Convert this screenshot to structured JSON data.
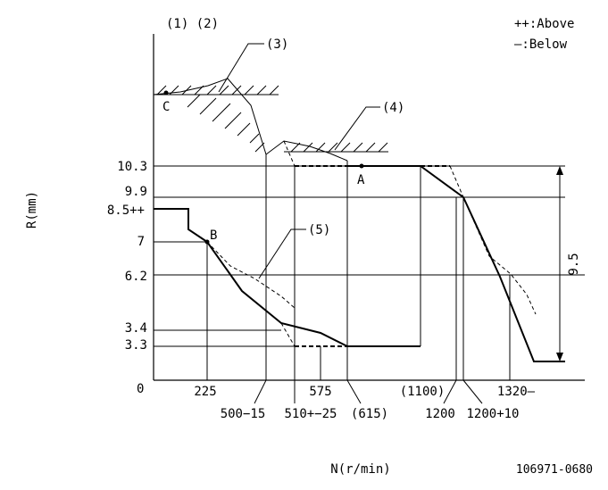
{
  "header": {
    "refs": "(1) (2)",
    "legend_above": "++:Above",
    "legend_below": "—:Below"
  },
  "axes": {
    "y_label": "R(mm)",
    "x_label": "N(r/min)",
    "origin": "0"
  },
  "y_ticks": [
    "10.3",
    "9.9",
    "8.5++",
    "7",
    "6.2",
    "3.4",
    "3.3"
  ],
  "x_ticks": [
    "225",
    "500−15",
    "510+−25",
    "575",
    "(615)",
    "(1100)",
    "1200",
    "1200+10",
    "1320—"
  ],
  "callouts": [
    "(3)",
    "(4)",
    "(5)"
  ],
  "points": {
    "a": "A",
    "b": "B",
    "c": "C"
  },
  "dimension": "9.5",
  "drawing_id": "106971-0680"
}
